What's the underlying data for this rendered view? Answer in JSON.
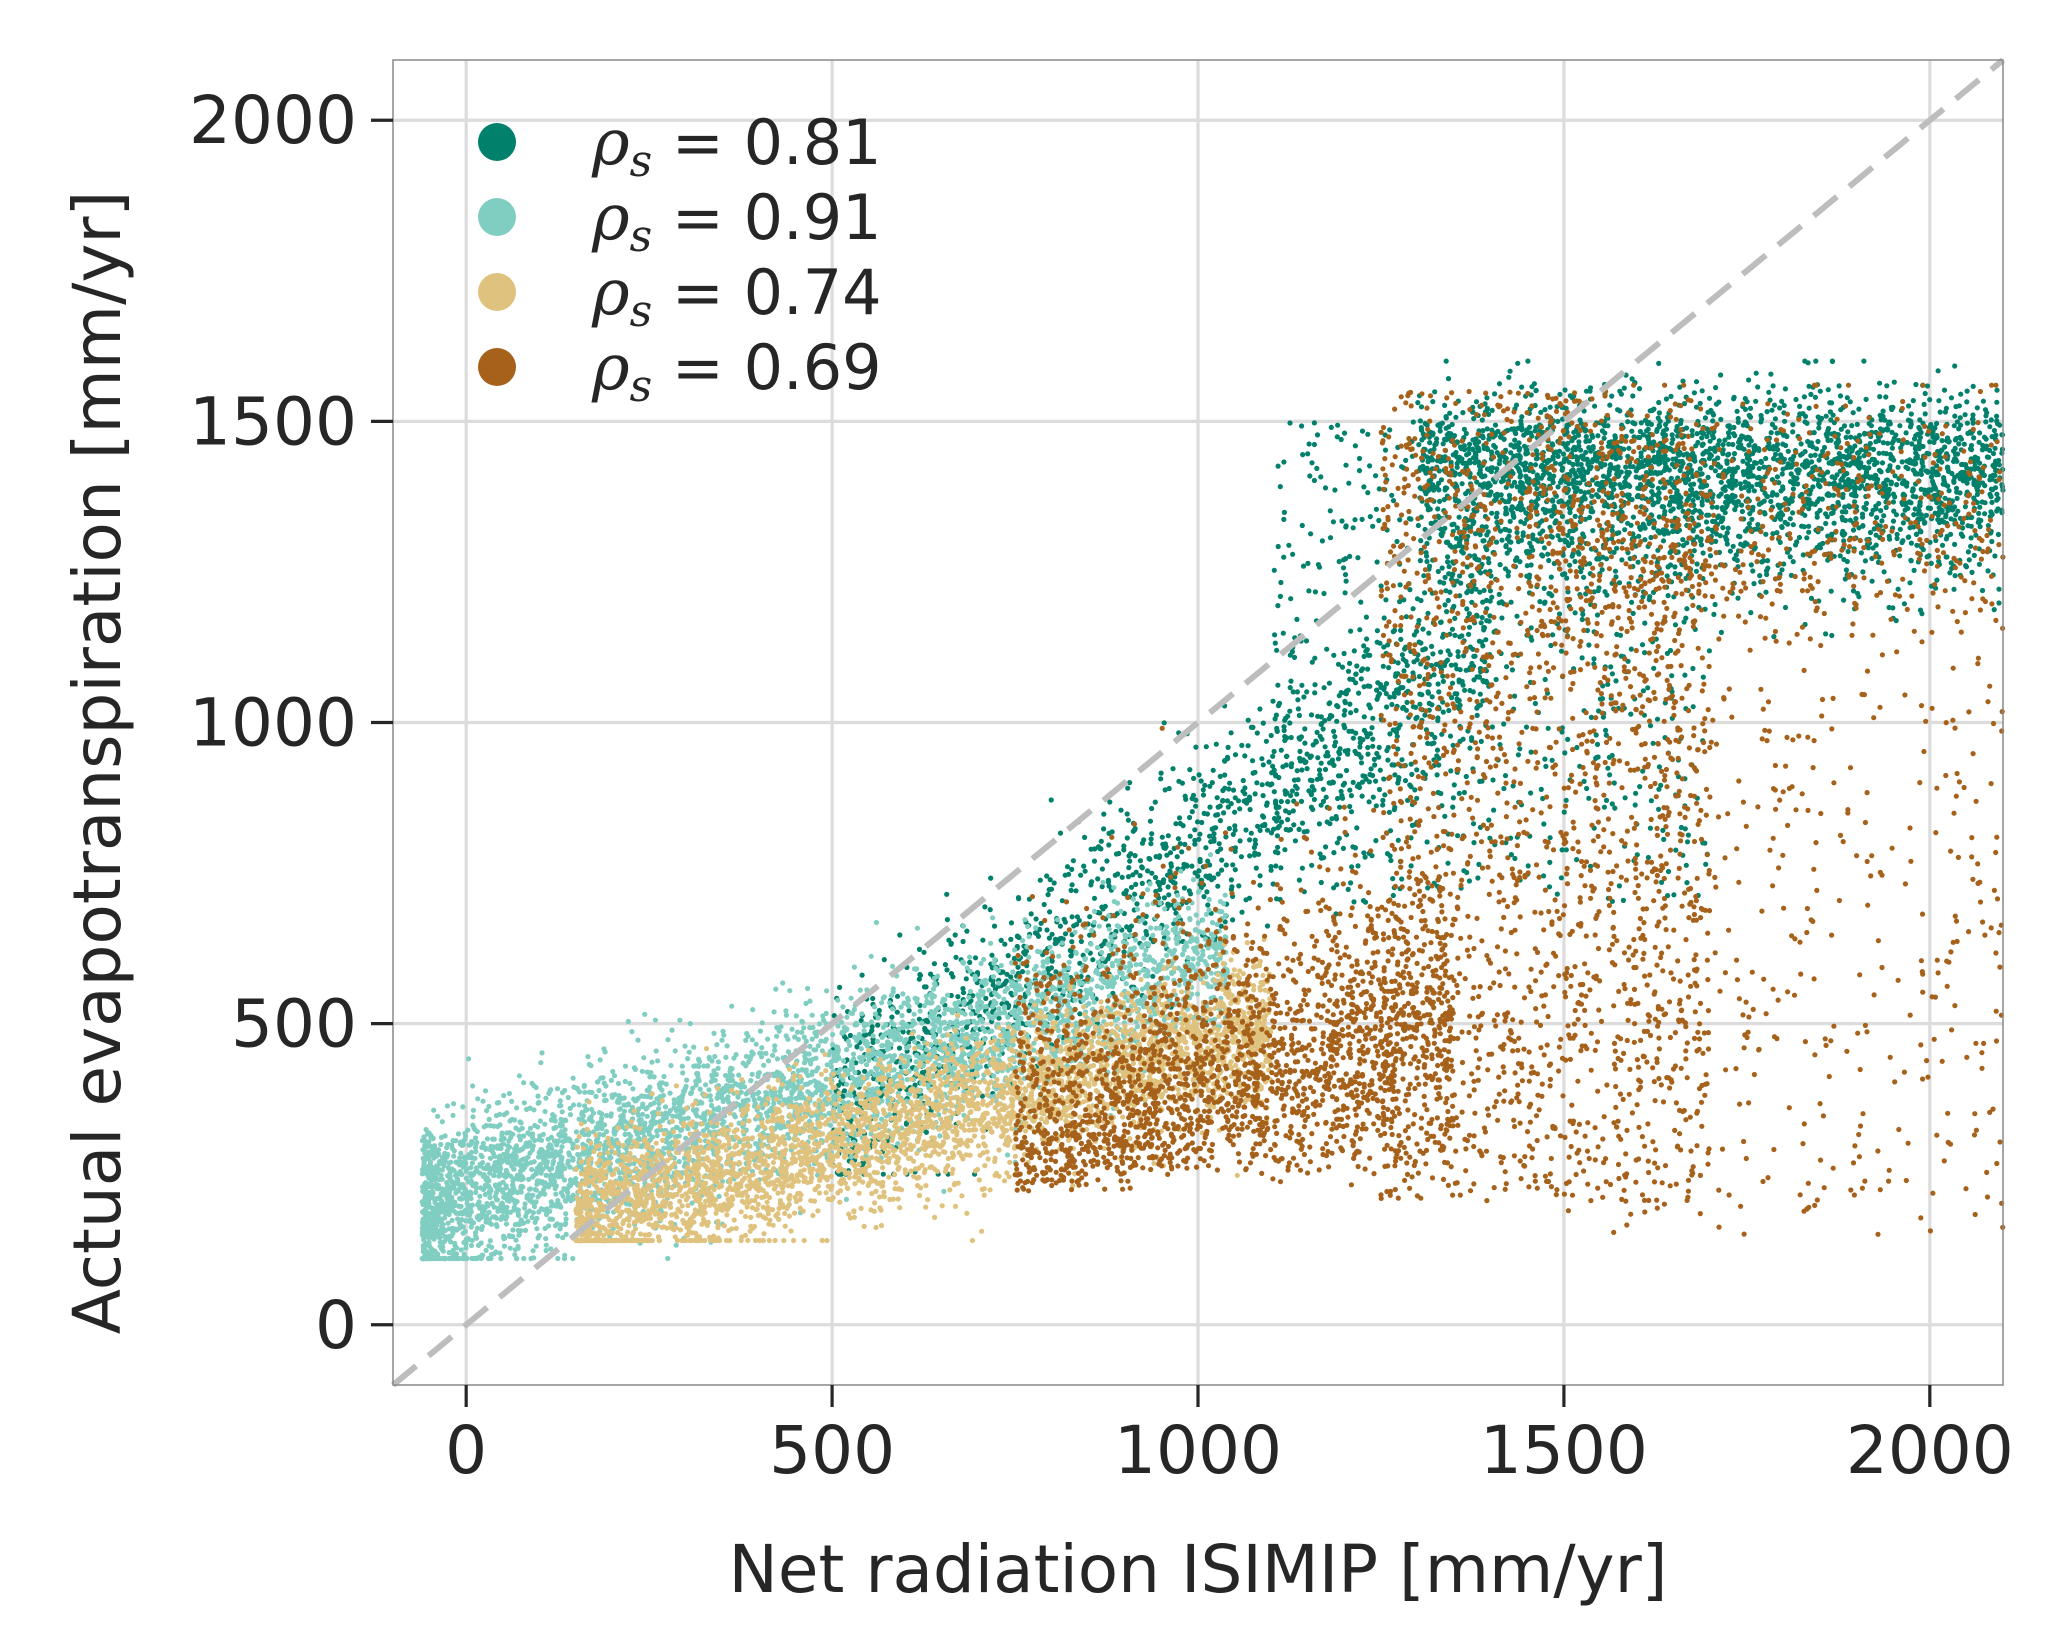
{
  "chart_data": {
    "type": "scatter",
    "xlabel": "Net radiation ISIMIP [mm/yr]",
    "ylabel": "Actual evapotranspiration [mm/yr]",
    "xlim": [
      -100,
      2100
    ],
    "ylim": [
      -100,
      2100
    ],
    "xticks": [
      0,
      500,
      1000,
      1500,
      2000
    ],
    "yticks": [
      0,
      500,
      1000,
      1500,
      2000
    ],
    "xtick_labels": [
      "0",
      "500",
      "1000",
      "1500",
      "2000"
    ],
    "ytick_labels": [
      "0",
      "500",
      "1000",
      "1500",
      "2000"
    ],
    "grid": true,
    "legend_position": "top-left",
    "reference_line": {
      "style": "dashed",
      "color": "#bdbdbd",
      "x": [
        -100,
        2100
      ],
      "y": [
        -100,
        2100
      ]
    },
    "series": [
      {
        "label_symbol": "ρ",
        "label_sub": "s",
        "label_rest": " = 0.81",
        "color": "#01806b",
        "centroid": [
          1350,
          1050
        ],
        "x_range": [
          350,
          2100
        ],
        "y_range": [
          300,
          1600
        ]
      },
      {
        "label_symbol": "ρ",
        "label_sub": "s",
        "label_rest": " = 0.91",
        "color": "#80cdc1",
        "centroid": [
          400,
          350
        ],
        "x_range": [
          -60,
          1050
        ],
        "y_range": [
          120,
          800
        ]
      },
      {
        "label_symbol": "ρ",
        "label_sub": "s",
        "label_rest": " = 0.74",
        "color": "#dfc27d",
        "centroid": [
          600,
          320
        ],
        "x_range": [
          150,
          1100
        ],
        "y_range": [
          150,
          700
        ]
      },
      {
        "label_symbol": "ρ",
        "label_sub": "s",
        "label_rest": " = 0.69",
        "color": "#a6611a",
        "centroid": [
          1300,
          500
        ],
        "x_range": [
          600,
          2100
        ],
        "y_range": [
          90,
          1570
        ]
      }
    ]
  }
}
